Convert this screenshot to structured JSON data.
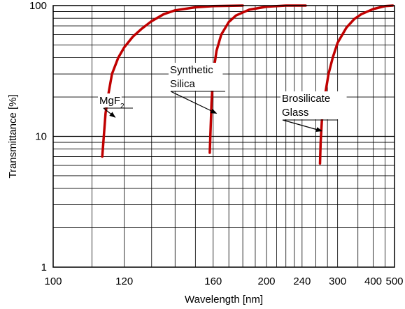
{
  "chart_data": {
    "type": "line",
    "title": "",
    "xlabel": "Wavelength [nm]",
    "ylabel": "Transmittance [%]",
    "x_scale": "reciprocal",
    "y_scale": "log",
    "xlim": [
      100,
      500
    ],
    "ylim": [
      1,
      100
    ],
    "grid": true,
    "x_ticks": [
      100,
      120,
      160,
      200,
      240,
      300,
      400,
      500
    ],
    "x_tick_labels": [
      "100",
      "120",
      "160",
      "200",
      "240",
      "300",
      "400",
      "500"
    ],
    "y_ticks": [
      1,
      10,
      100
    ],
    "y_tick_labels": [
      "1",
      "10",
      "100"
    ],
    "series_color": "#c00000",
    "series": [
      {
        "x": [
          113,
          114,
          115,
          116,
          118,
          120,
          123,
          126,
          130,
          135,
          140,
          150,
          160,
          180
        ],
        "y": [
          7,
          15,
          22,
          30,
          40,
          48,
          58,
          66,
          76,
          86,
          92,
          97,
          99,
          100
        ]
      },
      {
        "x": [
          158,
          159,
          160,
          162,
          165,
          170,
          175,
          185,
          200,
          220,
          245
        ],
        "y": [
          7.5,
          18,
          30,
          45,
          60,
          75,
          84,
          93,
          98,
          100,
          100
        ]
      },
      {
        "x": [
          267,
          268,
          270,
          275,
          282,
          290,
          300,
          320,
          340,
          360,
          400,
          450,
          490
        ],
        "y": [
          6.2,
          9,
          13,
          20,
          30,
          40,
          52,
          68,
          79,
          86,
          94,
          99,
          100
        ]
      }
    ],
    "annotations": [
      {
        "text": "MgF",
        "subscript": "2",
        "x": 117,
        "y": 14
      },
      {
        "text": "Synthetic\nSilica",
        "x": 162,
        "y": 15
      },
      {
        "text": "Brosilicate\nGlass",
        "x": 270,
        "y": 11
      }
    ]
  }
}
